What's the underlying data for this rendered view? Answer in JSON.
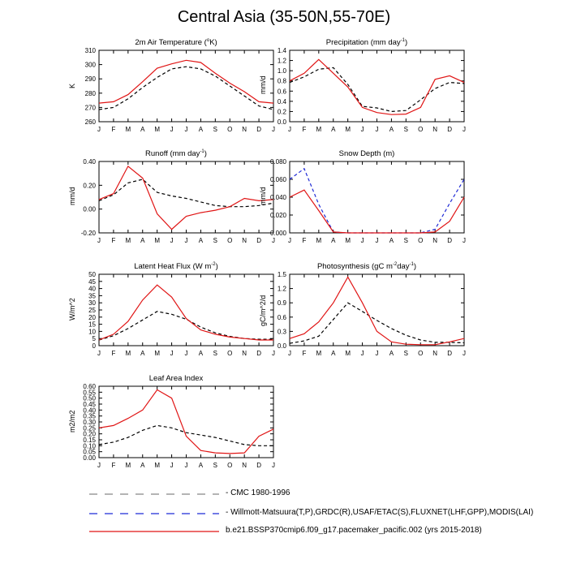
{
  "title": "Central Asia (35-50N,55-70E)",
  "colors": {
    "obs": "#000000",
    "obs2": "#1f2ad6",
    "model": "#e01515",
    "obs_legend": "#888888"
  },
  "legend": [
    {
      "label": "CMC 1980-1996",
      "color": "#888888",
      "dash": true
    },
    {
      "label": "Willmott-Matsuura(T,P),GRDC(R),USAF/ETAC(S),FLUXNET(LHF,GPP),MODIS(LAI)",
      "color": "#1f2ad6",
      "dash": true
    },
    {
      "label": "b.e21.BSSP370cmip6.f09_g17.pacemaker_pacific.002 (yrs 2015-2018)",
      "color": "#e01515",
      "dash": false
    }
  ],
  "chart_data": [
    {
      "type": "line",
      "title_base": "2m Air Temperature (",
      "title_sup": "o",
      "title_end": "K)",
      "ylabel": "K",
      "x": [
        "J",
        "F",
        "M",
        "A",
        "M",
        "J",
        "J",
        "A",
        "S",
        "O",
        "N",
        "D",
        "J"
      ],
      "ylim": [
        260,
        310
      ],
      "yticks": [
        "260",
        "270",
        "280",
        "290",
        "300",
        "310"
      ],
      "series": [
        {
          "style": "obs",
          "values": [
            268.5,
            270,
            276,
            284,
            291,
            297,
            298.5,
            297,
            292,
            285,
            278,
            271,
            268.5
          ]
        },
        {
          "style": "model",
          "values": [
            273,
            274,
            279,
            288,
            297.5,
            300.5,
            303,
            301.5,
            294,
            287,
            281,
            274,
            273
          ]
        }
      ]
    },
    {
      "type": "line",
      "title_base": "Precipitation (mm day",
      "title_sup": "-1",
      "title_end": ")",
      "ylabel": "mm/d",
      "x": [
        "J",
        "F",
        "M",
        "A",
        "M",
        "J",
        "J",
        "A",
        "S",
        "O",
        "N",
        "D",
        "J"
      ],
      "ylim": [
        0,
        1.4
      ],
      "yticks": [
        "0.0",
        "0.2",
        "0.4",
        "0.6",
        "0.8",
        "1.0",
        "1.2",
        "1.4"
      ],
      "series": [
        {
          "style": "obs",
          "values": [
            0.77,
            0.88,
            1.03,
            1.06,
            0.73,
            0.3,
            0.27,
            0.2,
            0.22,
            0.43,
            0.65,
            0.77,
            0.75
          ]
        },
        {
          "style": "model",
          "values": [
            0.8,
            0.95,
            1.22,
            0.95,
            0.68,
            0.28,
            0.18,
            0.14,
            0.15,
            0.28,
            0.83,
            0.9,
            0.77
          ]
        }
      ]
    },
    {
      "type": "line",
      "title_base": "Runoff (mm day",
      "title_sup": "-1",
      "title_end": ")",
      "ylabel": "mm/d",
      "x": [
        "J",
        "F",
        "M",
        "A",
        "M",
        "J",
        "J",
        "A",
        "S",
        "O",
        "N",
        "D",
        "J"
      ],
      "ylim": [
        -0.2,
        0.4
      ],
      "yticks": [
        "-0.20",
        "0.00",
        "0.20",
        "0.40"
      ],
      "series": [
        {
          "style": "obs",
          "values": [
            0.07,
            0.12,
            0.22,
            0.25,
            0.14,
            0.11,
            0.09,
            0.06,
            0.03,
            0.02,
            0.02,
            0.03,
            0.05
          ]
        },
        {
          "style": "model",
          "values": [
            0.08,
            0.13,
            0.36,
            0.26,
            -0.04,
            -0.17,
            -0.06,
            -0.03,
            -0.01,
            0.02,
            0.09,
            0.07,
            0.08
          ]
        }
      ]
    },
    {
      "type": "line",
      "title_base": "Snow Depth (m)",
      "title_sup": "",
      "title_end": "",
      "ylabel": "mm/d",
      "x": [
        "J",
        "F",
        "M",
        "A",
        "M",
        "J",
        "J",
        "A",
        "S",
        "O",
        "N",
        "D",
        "J"
      ],
      "ylim": [
        0,
        0.08
      ],
      "yticks": [
        "0.000",
        "0.020",
        "0.040",
        "0.060",
        "0.080"
      ],
      "series": [
        {
          "style": "obs2",
          "values": [
            0.06,
            0.072,
            0.032,
            0.001,
            0,
            0,
            0,
            0,
            0,
            0,
            0.004,
            0.033,
            0.06
          ]
        },
        {
          "style": "model",
          "values": [
            0.04,
            0.048,
            0.025,
            0.001,
            0,
            0,
            0,
            0,
            0,
            0,
            0.001,
            0.013,
            0.04
          ]
        }
      ]
    },
    {
      "type": "line",
      "title_base": "Latent Heat Flux (W m",
      "title_sup": "-2",
      "title_end": ")",
      "ylabel": "W/m^2",
      "x": [
        "J",
        "F",
        "M",
        "A",
        "M",
        "J",
        "J",
        "A",
        "S",
        "O",
        "N",
        "D",
        "J"
      ],
      "ylim": [
        0,
        50
      ],
      "yticks": [
        "0",
        "5",
        "10",
        "15",
        "20",
        "25",
        "30",
        "35",
        "40",
        "45",
        "50"
      ],
      "series": [
        {
          "style": "obs",
          "values": [
            4,
            7,
            12,
            18,
            24,
            22,
            18.5,
            13,
            9,
            6.5,
            5,
            4.5,
            4.5
          ]
        },
        {
          "style": "model",
          "values": [
            4,
            8,
            17,
            32,
            42.5,
            34,
            19,
            11,
            8,
            6,
            5,
            4,
            4
          ]
        }
      ]
    },
    {
      "type": "line",
      "title_base": "Photosynthesis (gC m",
      "title_sup": "-2",
      "title_end": "day",
      "title_sup2": "-1",
      "title_end2": ")",
      "ylabel": "gC/m^2/d",
      "x": [
        "J",
        "F",
        "M",
        "A",
        "M",
        "J",
        "J",
        "A",
        "S",
        "O",
        "N",
        "D",
        "J"
      ],
      "ylim": [
        0,
        1.5
      ],
      "yticks": [
        "0.0",
        "0.3",
        "0.6",
        "0.9",
        "1.2",
        "1.5"
      ],
      "series": [
        {
          "style": "obs",
          "values": [
            0.05,
            0.1,
            0.2,
            0.55,
            0.9,
            0.72,
            0.53,
            0.36,
            0.22,
            0.12,
            0.07,
            0.07,
            0.06
          ]
        },
        {
          "style": "model",
          "values": [
            0.15,
            0.25,
            0.5,
            0.9,
            1.44,
            0.9,
            0.3,
            0.08,
            0.03,
            0.02,
            0.02,
            0.08,
            0.15
          ]
        }
      ]
    },
    {
      "type": "line",
      "title_base": "Leaf Area Index",
      "title_sup": "",
      "title_end": "",
      "ylabel": "m2/m2",
      "x": [
        "J",
        "F",
        "M",
        "A",
        "M",
        "J",
        "J",
        "A",
        "S",
        "O",
        "N",
        "D",
        "J"
      ],
      "ylim": [
        0,
        0.6
      ],
      "yticks": [
        "0.00",
        "0.05",
        "0.10",
        "0.15",
        "0.20",
        "0.25",
        "0.30",
        "0.35",
        "0.40",
        "0.45",
        "0.50",
        "0.55",
        "0.60"
      ],
      "series": [
        {
          "style": "obs",
          "values": [
            0.11,
            0.13,
            0.17,
            0.23,
            0.27,
            0.25,
            0.21,
            0.19,
            0.17,
            0.14,
            0.11,
            0.1,
            0.1
          ]
        },
        {
          "style": "model",
          "values": [
            0.25,
            0.27,
            0.33,
            0.4,
            0.57,
            0.5,
            0.18,
            0.06,
            0.04,
            0.035,
            0.04,
            0.18,
            0.24
          ]
        }
      ]
    }
  ]
}
